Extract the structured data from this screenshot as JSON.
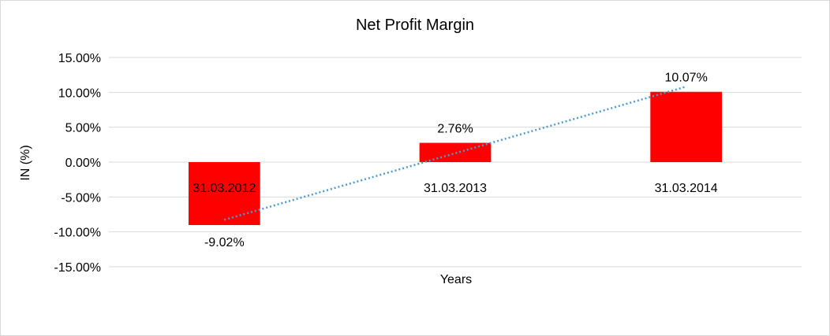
{
  "chart_data": {
    "type": "bar",
    "title": "Net Profit Margin",
    "xlabel": "Years",
    "ylabel": "IN (%)",
    "categories": [
      "31.03.2012",
      "31.03.2013",
      "31.03.2014"
    ],
    "values": [
      -9.02,
      2.76,
      10.07
    ],
    "data_labels": [
      "-9.02%",
      "2.76%",
      "10.07%"
    ],
    "ylim": [
      -15,
      15
    ],
    "yticks": [
      15,
      10,
      5,
      0,
      -5,
      -10,
      -15
    ],
    "ytick_labels": [
      "15.00%",
      "10.00%",
      "5.00%",
      "0.00%",
      "-5.00%",
      "-10.00%",
      "-15.00%"
    ],
    "grid": true,
    "trendline": {
      "type": "linear",
      "style": "dotted"
    },
    "colors": {
      "bar": "#ff0000",
      "trendline": "#4a9bd4",
      "grid": "#d9d9d9"
    }
  }
}
